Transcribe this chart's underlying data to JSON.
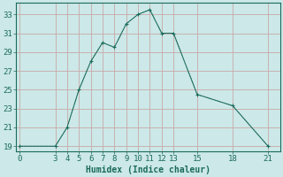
{
  "x": [
    0,
    3,
    4,
    5,
    6,
    7,
    8,
    9,
    10,
    11,
    12,
    13,
    15,
    18,
    21
  ],
  "y": [
    19,
    19,
    21,
    25,
    28,
    30,
    29.5,
    32,
    33,
    33.5,
    31,
    31,
    24.5,
    23.3,
    19
  ],
  "line_color": "#1a6b5a",
  "marker": "+",
  "bg_color": "#cce8e8",
  "grid_color": "#c9a8a8",
  "xlabel": "Humidex (Indice chaleur)",
  "ylim": [
    18.5,
    34.2
  ],
  "xlim": [
    -0.3,
    22
  ],
  "yticks": [
    19,
    21,
    23,
    25,
    27,
    29,
    31,
    33
  ],
  "xticks": [
    0,
    3,
    4,
    5,
    6,
    7,
    8,
    9,
    10,
    11,
    12,
    13,
    15,
    18,
    21
  ],
  "font_size": 6.5,
  "label_font_size": 7
}
